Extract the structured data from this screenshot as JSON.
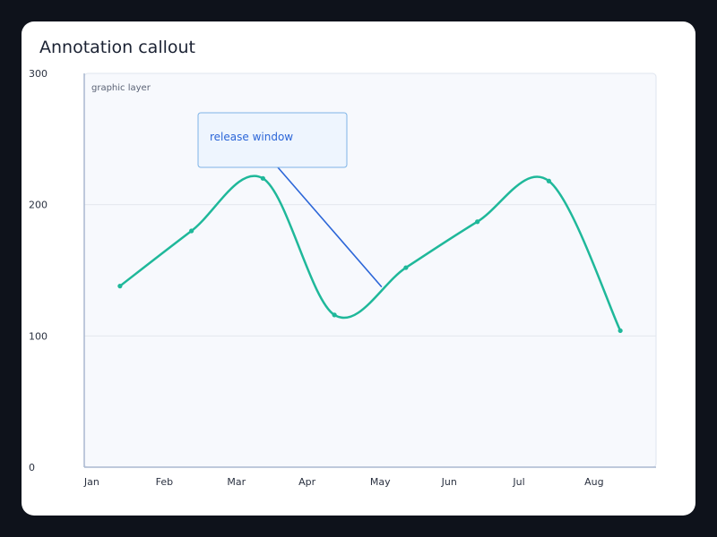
{
  "title": "Annotation callout",
  "layer_label": "graphic layer",
  "annotation": {
    "text": "release window",
    "anchor_category": "May",
    "anchor_value": 138
  },
  "colors": {
    "background": "#0e121b",
    "card": "#ffffff",
    "plot_bg": "#f7f9fd",
    "series": "#1fb89a",
    "annotation": "#2c66d8",
    "callout_bg": "#eef5fe",
    "callout_border": "#7fb4e6",
    "grid": "#e3e7ee",
    "axis": "#aab8d0"
  },
  "chart_data": {
    "type": "line",
    "title": "Annotation callout",
    "categories": [
      "Jan",
      "Feb",
      "Mar",
      "Apr",
      "May",
      "Jun",
      "Jul",
      "Aug"
    ],
    "y_ticks": [
      "0",
      "100",
      "200",
      "300"
    ],
    "ylim": [
      0,
      300
    ],
    "series": [
      {
        "values": [
          138,
          180,
          220,
          116,
          152,
          187,
          218,
          104
        ]
      }
    ],
    "grid": true,
    "smooth": true
  }
}
